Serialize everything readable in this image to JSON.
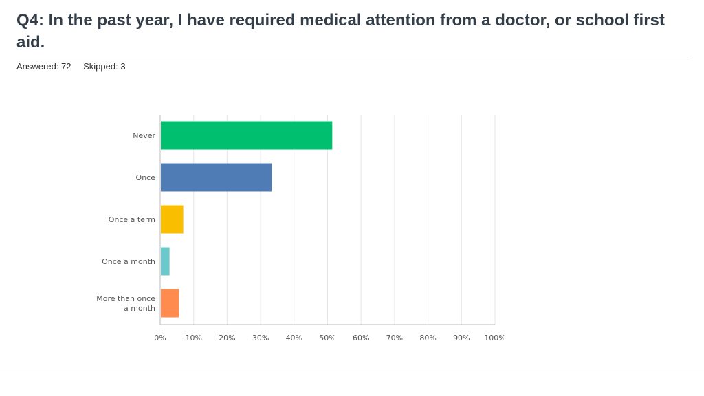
{
  "question": {
    "title": "Q4: In the past year, I have required medical attention from a doctor, or school first aid.",
    "answered_label": "Answered: 72",
    "skipped_label": "Skipped: 3"
  },
  "chart_data": {
    "type": "bar",
    "orientation": "horizontal",
    "categories": [
      "Never",
      "Once",
      "Once a term",
      "Once a month",
      "More than once a month"
    ],
    "values": [
      51.4,
      33.3,
      6.9,
      2.8,
      5.6
    ],
    "colors": [
      "#00bf6f",
      "#507cb6",
      "#f9be00",
      "#6bc8cd",
      "#ff8b4f"
    ],
    "xlim": [
      0,
      100
    ],
    "x_ticks": [
      "0%",
      "10%",
      "20%",
      "30%",
      "40%",
      "50%",
      "60%",
      "70%",
      "80%",
      "90%",
      "100%"
    ],
    "grid": true
  }
}
